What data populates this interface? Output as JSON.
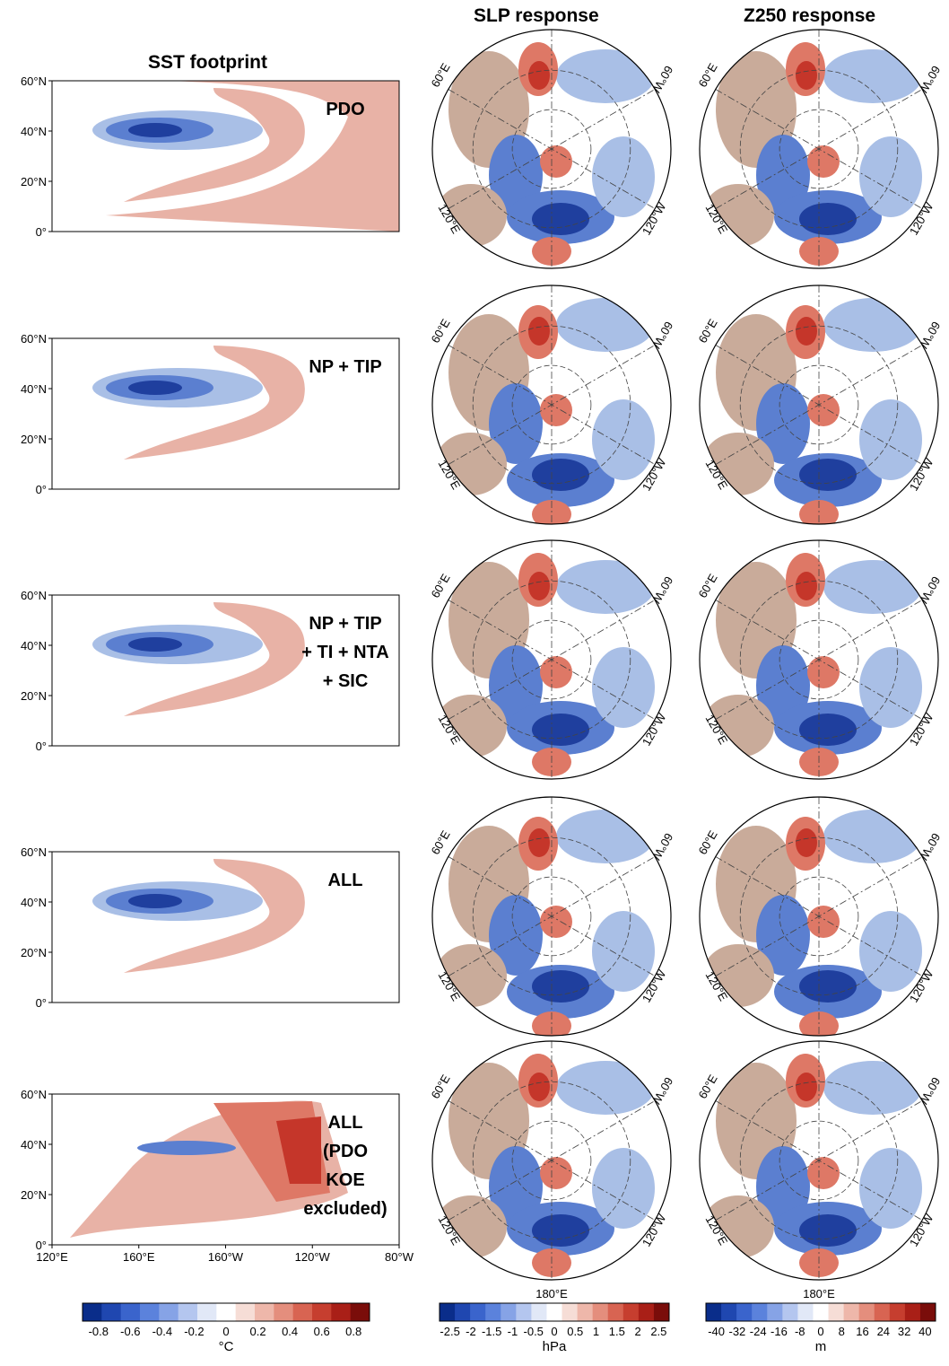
{
  "columns": {
    "sst": "SST footprint",
    "slp": "SLP response",
    "z250": "Z250 response"
  },
  "rows": [
    {
      "label_lines": [
        "PDO"
      ]
    },
    {
      "label_lines": [
        "NP + TIP"
      ]
    },
    {
      "label_lines": [
        "NP + TIP",
        "+ TI + NTA",
        "+ SIC"
      ]
    },
    {
      "label_lines": [
        "ALL"
      ]
    },
    {
      "label_lines": [
        "ALL",
        "(PDO",
        "KOE",
        "excluded)"
      ]
    }
  ],
  "sst_axis": {
    "lat_ticks": [
      "60°N",
      "40°N",
      "20°N",
      "0°"
    ],
    "lon_ticks": [
      "120°E",
      "160°E",
      "160°W",
      "120°W",
      "80°W"
    ]
  },
  "polar_labels": {
    "upper_left": "60°E",
    "upper_right": "60°W",
    "lower_left": "120°E",
    "lower_right": "120°W",
    "bottom": "180°E"
  },
  "colorbars": {
    "sst": {
      "ticks": [
        "-0.8",
        "-0.6",
        "-0.4",
        "-0.2",
        "0",
        "0.2",
        "0.4",
        "0.6",
        "0.8"
      ],
      "unit": "°C"
    },
    "slp": {
      "ticks": [
        "-2.5",
        "-2",
        "-1.5",
        "-1",
        "-0.5",
        "0",
        "0.5",
        "1",
        "1.5",
        "2",
        "2.5"
      ],
      "unit": "hPa"
    },
    "z250": {
      "ticks": [
        "-40",
        "-32",
        "-24",
        "-16",
        "-8",
        "0",
        "8",
        "16",
        "24",
        "32",
        "40"
      ],
      "unit": "m"
    }
  },
  "palette": {
    "neg_dark": "#1f3f9e",
    "neg_mid": "#5b7fd0",
    "neg_light": "#a9bfe6",
    "pos_light": "#e8b2a6",
    "pos_mid": "#de7866",
    "pos_dark": "#c5362a",
    "neutral": "#c9ab9a"
  }
}
